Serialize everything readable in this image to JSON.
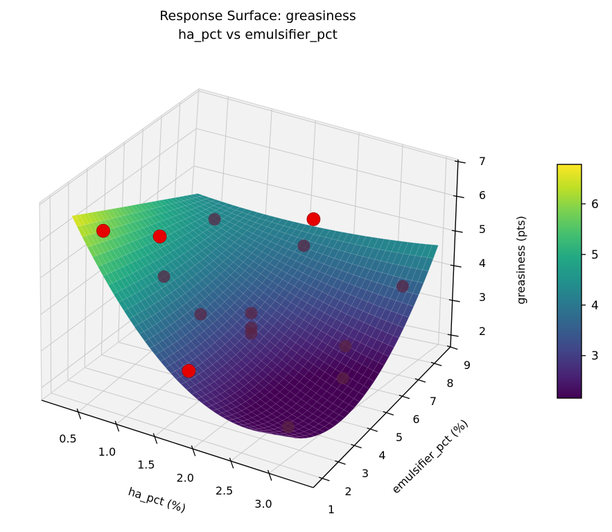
{
  "title": {
    "line1": "Response Surface: greasiness",
    "line2": "ha_pct vs emulsifier_pct"
  },
  "chart_data": {
    "type": "surface3d",
    "title": "Response Surface: greasiness\nha_pct vs emulsifier_pct",
    "xlabel": "ha_pct (%)",
    "ylabel": "emulsifier_pct (%)",
    "zlabel": "greasiness (pts)",
    "x_ticks": [
      0.5,
      1.0,
      1.5,
      2.0,
      2.5,
      3.0
    ],
    "x_tick_labels": [
      "0.5",
      "1.0",
      "1.5",
      "2.0",
      "2.5",
      "3.0"
    ],
    "y_ticks": [
      1,
      2,
      3,
      4,
      5,
      6,
      7,
      8,
      9
    ],
    "y_tick_labels": [
      "1",
      "2",
      "3",
      "4",
      "5",
      "6",
      "7",
      "8",
      "9"
    ],
    "z_ticks": [
      2,
      3,
      4,
      5,
      6,
      7
    ],
    "z_tick_labels": [
      "2",
      "3",
      "4",
      "5",
      "6",
      "7"
    ],
    "xlim": [
      0.02,
      3.58
    ],
    "ylim": [
      0.6,
      9.4
    ],
    "zlim": [
      1.66,
      7.06
    ],
    "surface_model": {
      "comment": "fitted quadratic response surface z=f(ha_pct,emulsifier_pct)",
      "x_domain": [
        0.3,
        3.0
      ],
      "y_domain": [
        1.0,
        9.0
      ],
      "front_edge": {
        "c": 2.35,
        "k": 0.813,
        "x0": 2.6
      },
      "back_edge": {
        "c": 4.2,
        "k": 0.12,
        "x0": 1.4
      },
      "y_curvature_coeff": -0.012,
      "grid_nx": 40,
      "grid_ny": 32
    },
    "colorbar": {
      "vmin": 2.16,
      "vmax": 6.78,
      "ticks": [
        3,
        4,
        5,
        6
      ],
      "tick_labels": [
        "3",
        "4",
        "5",
        "6"
      ]
    },
    "points": [
      {
        "x": 0.5,
        "y": 2.0,
        "z": 6.0,
        "occluded": false
      },
      {
        "x": 0.8,
        "y": 4.0,
        "z": 5.3,
        "occluded": false
      },
      {
        "x": 1.6,
        "y": 9.0,
        "z": 4.4,
        "occluded": false
      },
      {
        "x": 1.7,
        "y": 1.5,
        "z": 3.15,
        "occluded": false
      },
      {
        "x": 0.9,
        "y": 6.8,
        "z": 4.8,
        "occluded": true
      },
      {
        "x": 0.75,
        "y": 4.5,
        "z": 4.0,
        "occluded": true
      },
      {
        "x": 1.3,
        "y": 4.0,
        "z": 3.5,
        "occluded": true
      },
      {
        "x": 1.65,
        "y": 8.2,
        "z": 4.0,
        "occluded": true
      },
      {
        "x": 2.6,
        "y": 9.0,
        "z": 3.1,
        "occluded": true
      },
      {
        "x": 1.7,
        "y": 5.0,
        "z": 3.4,
        "occluded": true
      },
      {
        "x": 1.7,
        "y": 5.0,
        "z": 3.0,
        "occluded": true
      },
      {
        "x": 1.7,
        "y": 5.0,
        "z": 2.85,
        "occluded": true
      },
      {
        "x": 2.6,
        "y": 6.0,
        "z": 2.65,
        "occluded": true
      },
      {
        "x": 2.85,
        "y": 4.8,
        "z": 2.4,
        "occluded": true
      },
      {
        "x": 2.9,
        "y": 1.8,
        "z": 2.3,
        "occluded": true
      }
    ],
    "colors": {
      "point_red": "#e60000",
      "point_red_edge": "#990000",
      "point_occluded": "#5a2342",
      "pane_fill": "#f2f2f2",
      "grid_line": "#c8c8c8",
      "pane_edge": "#d4d4d4",
      "spine": "#000000",
      "text": "#000000",
      "mesh_line": "rgba(255,255,255,0.22)",
      "viridis": [
        "#440154",
        "#482475",
        "#414487",
        "#355f8d",
        "#2a788e",
        "#21918c",
        "#22a884",
        "#44bf70",
        "#7ad151",
        "#bddf26",
        "#fde725"
      ]
    },
    "legend": null,
    "grid": true
  }
}
